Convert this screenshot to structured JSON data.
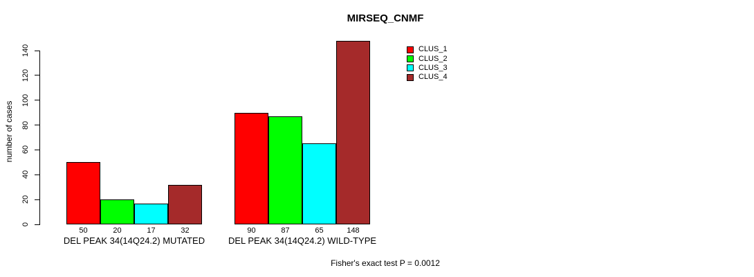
{
  "title": "MIRSEQ_CNMF",
  "footer": "Fisher's exact test P = 0.0012",
  "chart_data": {
    "type": "bar",
    "title": "MIRSEQ_CNMF",
    "xlabel": "",
    "ylabel": "number of cases",
    "ylim": [
      0,
      140
    ],
    "ytick_step": 20,
    "grid": false,
    "legend_position": "top-right",
    "categories": [
      "DEL PEAK 34(14Q24.2) MUTATED",
      "DEL PEAK 34(14Q24.2) WILD-TYPE"
    ],
    "series": [
      {
        "name": "CLUS_1",
        "color": "#ff0000",
        "values": [
          50,
          90
        ]
      },
      {
        "name": "CLUS_2",
        "color": "#00ff00",
        "values": [
          20,
          87
        ]
      },
      {
        "name": "CLUS_3",
        "color": "#00ffff",
        "values": [
          17,
          65
        ]
      },
      {
        "name": "CLUS_4",
        "color": "#a52a2a",
        "values": [
          32,
          148
        ]
      }
    ],
    "bar_value_labels": [
      [
        50,
        20,
        17,
        32
      ],
      [
        90,
        87,
        65,
        148
      ]
    ],
    "annotation": "Fisher's exact test P = 0.0012"
  }
}
